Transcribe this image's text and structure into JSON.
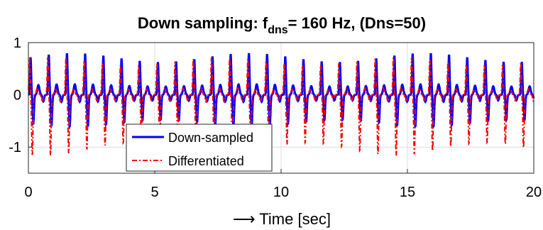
{
  "chart_data": {
    "type": "line",
    "title": {
      "prefix": "Down sampling: f",
      "subscript": "dns",
      "suffix": "= 160 Hz, (Dns=50)"
    },
    "xlabel": "⟶ Time [sec]",
    "ylabel": "",
    "xlim": [
      0,
      20
    ],
    "ylim": [
      -1.5,
      1
    ],
    "x_ticks": [
      0,
      5,
      10,
      15,
      20
    ],
    "x_tick_labels": [
      "0",
      "5",
      "10",
      "15",
      "20"
    ],
    "y_ticks": [
      1,
      0,
      -1
    ],
    "y_tick_labels": [
      "1",
      "0",
      "-1"
    ],
    "grid": true,
    "legend_position": "bottom-left",
    "beat_period_sec": 0.72,
    "series": [
      {
        "name": "Down-sampled",
        "color": "#0000ff",
        "style": "solid",
        "waveform_peak": 0.72,
        "waveform_trough": -0.55,
        "secondary_peak": 0.18
      },
      {
        "name": "Differentiated",
        "color": "#ff0000",
        "style": "dash-dot",
        "waveform_peak": 0.65,
        "waveform_trough": -1.05,
        "secondary_peak": 0.12
      }
    ]
  }
}
